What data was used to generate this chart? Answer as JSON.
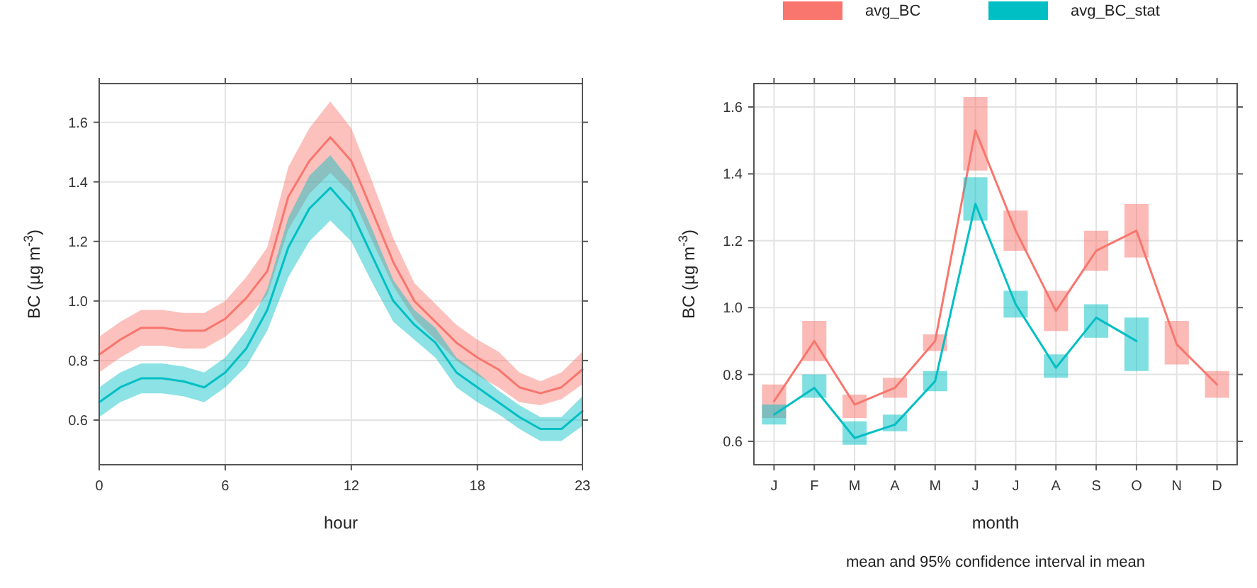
{
  "chart_data": [
    {
      "type": "line",
      "xlabel": "hour",
      "ylabel": "BC (µg m$^{-3}$)",
      "x": [
        0,
        1,
        2,
        3,
        4,
        5,
        6,
        7,
        8,
        9,
        10,
        11,
        12,
        13,
        14,
        15,
        16,
        17,
        18,
        19,
        20,
        21,
        22,
        23
      ],
      "xlim": [
        0,
        23
      ],
      "xticks": [
        0,
        6,
        12,
        18,
        23
      ],
      "ylim": [
        0.45,
        1.73
      ],
      "yticks": [
        0.6,
        0.8,
        {
          "value": 1,
          "label": "1.0"
        },
        1.2,
        1.4,
        1.6
      ],
      "grid": true,
      "legend": false,
      "series": [
        {
          "color": "#f8766d",
          "values": [
            0.82,
            0.87,
            0.91,
            0.91,
            0.9,
            0.9,
            0.94,
            1.01,
            1.1,
            1.35,
            1.47,
            1.55,
            1.47,
            1.3,
            1.13,
            1.0,
            0.93,
            0.86,
            0.81,
            0.77,
            0.71,
            0.69,
            0.71,
            0.77
          ],
          "lower": [
            0.76,
            0.81,
            0.85,
            0.85,
            0.84,
            0.84,
            0.88,
            0.94,
            1.02,
            1.24,
            1.36,
            1.43,
            1.36,
            1.2,
            1.05,
            0.94,
            0.87,
            0.8,
            0.75,
            0.71,
            0.66,
            0.65,
            0.67,
            0.72
          ],
          "upper": [
            0.88,
            0.93,
            0.97,
            0.97,
            0.96,
            0.96,
            1.0,
            1.08,
            1.18,
            1.45,
            1.58,
            1.67,
            1.58,
            1.4,
            1.21,
            1.06,
            0.99,
            0.92,
            0.87,
            0.83,
            0.76,
            0.73,
            0.76,
            0.83
          ]
        },
        {
          "color": "#00bfc4",
          "values": [
            0.66,
            0.71,
            0.74,
            0.74,
            0.73,
            0.71,
            0.76,
            0.84,
            0.97,
            1.18,
            1.31,
            1.38,
            1.3,
            1.15,
            1.0,
            0.92,
            0.86,
            0.76,
            0.71,
            0.66,
            0.61,
            0.57,
            0.57,
            0.63
          ],
          "lower": [
            0.61,
            0.66,
            0.69,
            0.69,
            0.68,
            0.66,
            0.71,
            0.78,
            0.9,
            1.08,
            1.2,
            1.27,
            1.2,
            1.06,
            0.93,
            0.87,
            0.81,
            0.71,
            0.66,
            0.62,
            0.57,
            0.53,
            0.53,
            0.58
          ],
          "upper": [
            0.71,
            0.76,
            0.79,
            0.79,
            0.78,
            0.76,
            0.81,
            0.9,
            1.04,
            1.28,
            1.42,
            1.49,
            1.4,
            1.24,
            1.07,
            0.97,
            0.91,
            0.81,
            0.76,
            0.7,
            0.65,
            0.61,
            0.61,
            0.68
          ]
        }
      ]
    },
    {
      "type": "line",
      "xlabel": "month",
      "ylabel": "BC (µg m$^{-3}$)",
      "categories": [
        "J",
        "F",
        "M",
        "A",
        "M",
        "J",
        "J",
        "A",
        "S",
        "O",
        "N",
        "D"
      ],
      "ylim": [
        0.53,
        1.67
      ],
      "yticks": [
        0.6,
        0.8,
        {
          "value": 1,
          "label": "1.0"
        },
        1.2,
        1.4,
        1.6
      ],
      "grid": true,
      "legend": "top",
      "annotations": [
        "mean and 95% confidence interval in mean"
      ],
      "series": [
        {
          "name": "avg_BC",
          "color": "#f8766d",
          "values": [
            0.72,
            0.9,
            0.71,
            0.76,
            0.9,
            1.53,
            1.23,
            0.99,
            1.17,
            1.23,
            0.89,
            0.77
          ],
          "errors": [
            [
              0.67,
              0.77
            ],
            [
              0.84,
              0.96
            ],
            [
              0.67,
              0.74
            ],
            [
              0.73,
              0.79
            ],
            [
              0.87,
              0.92
            ],
            [
              1.41,
              1.63
            ],
            [
              1.17,
              1.29
            ],
            [
              0.93,
              1.05
            ],
            [
              1.11,
              1.23
            ],
            [
              1.15,
              1.31
            ],
            [
              0.83,
              0.96
            ],
            [
              0.73,
              0.81
            ]
          ]
        },
        {
          "name": "avg_BC_stat",
          "color": "#00bfc4",
          "values": [
            0.68,
            0.76,
            0.61,
            0.65,
            0.78,
            1.31,
            1.01,
            0.82,
            0.97,
            0.9,
            null,
            null
          ],
          "errors": [
            [
              0.65,
              0.71
            ],
            [
              0.73,
              0.8
            ],
            [
              0.59,
              0.66
            ],
            [
              0.63,
              0.68
            ],
            [
              0.75,
              0.81
            ],
            [
              1.26,
              1.39
            ],
            [
              0.97,
              1.05
            ],
            [
              0.79,
              0.86
            ],
            [
              0.91,
              1.01
            ],
            [
              0.81,
              0.97
            ],
            null,
            null
          ]
        }
      ]
    }
  ]
}
